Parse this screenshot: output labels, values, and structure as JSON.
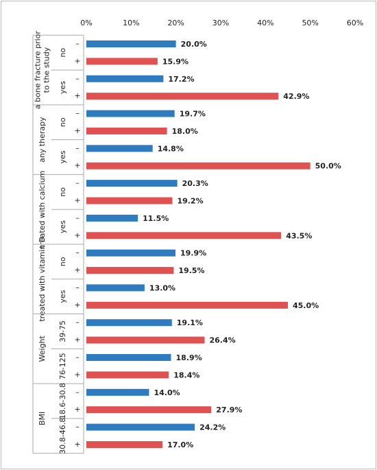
{
  "chart_data": {
    "type": "bar",
    "orientation": "horizontal",
    "xlim": [
      0,
      60
    ],
    "xticks": [
      {
        "value": 0,
        "label": "0%"
      },
      {
        "value": 10,
        "label": "10%"
      },
      {
        "value": 20,
        "label": "20%"
      },
      {
        "value": 30,
        "label": "30%"
      },
      {
        "value": 40,
        "label": "40%"
      },
      {
        "value": 50,
        "label": "50%"
      },
      {
        "value": 60,
        "label": "60%"
      }
    ],
    "groups": [
      {
        "label": [
          "a bone fracture prior",
          "to the study"
        ],
        "subgroups": [
          "no",
          "yes"
        ]
      },
      {
        "label": [
          "any therapy"
        ],
        "subgroups": [
          "no",
          "yes"
        ]
      },
      {
        "label": [
          "treated with calcium"
        ],
        "subgroups": [
          "no",
          "yes"
        ]
      },
      {
        "label": [
          "treated with vitamin D"
        ],
        "subgroups": [
          "no",
          "yes"
        ]
      },
      {
        "label": [
          "Weight"
        ],
        "subgroups": [
          "39-75",
          "76-125"
        ]
      },
      {
        "label": [
          "BMI"
        ],
        "subgroups": [
          "18.6-30.8",
          "30.8-46.8"
        ]
      }
    ],
    "categories": [
      "–",
      "+",
      "–",
      "+",
      "–",
      "+",
      "–",
      "+",
      "–",
      "+",
      "–",
      "+",
      "–",
      "+",
      "–",
      "+",
      "–",
      "+",
      "–",
      "+",
      "–",
      "+",
      "–",
      "+"
    ],
    "values": [
      20.0,
      15.9,
      17.2,
      42.9,
      19.7,
      18.0,
      14.8,
      50.0,
      20.3,
      19.2,
      11.5,
      43.5,
      19.9,
      19.5,
      13.0,
      45.0,
      19.1,
      26.4,
      18.9,
      18.4,
      14.0,
      27.9,
      24.2,
      17.0
    ],
    "value_labels": [
      "20.0%",
      "15.9%",
      "17.2%",
      "42.9%",
      "19.7%",
      "18.0%",
      "14.8%",
      "50.0%",
      "20.3%",
      "19.2%",
      "11.5%",
      "43.5%",
      "19.9%",
      "19.5%",
      "13.0%",
      "45.0%",
      "19.1%",
      "26.4%",
      "18.9%",
      "18.4%",
      "14.0%",
      "27.9%",
      "24.2%",
      "17.0%"
    ],
    "colors": [
      "#2e7cbf",
      "#e05252",
      "#2e7cbf",
      "#e05252",
      "#2e7cbf",
      "#e05252",
      "#2e7cbf",
      "#e05252",
      "#2e7cbf",
      "#e05252",
      "#2e7cbf",
      "#e05252",
      "#2e7cbf",
      "#e05252",
      "#2e7cbf",
      "#e05252",
      "#2e7cbf",
      "#e05252",
      "#2e7cbf",
      "#e05252",
      "#2e7cbf",
      "#e05252",
      "#2e7cbf",
      "#e05252"
    ],
    "grid": false
  }
}
